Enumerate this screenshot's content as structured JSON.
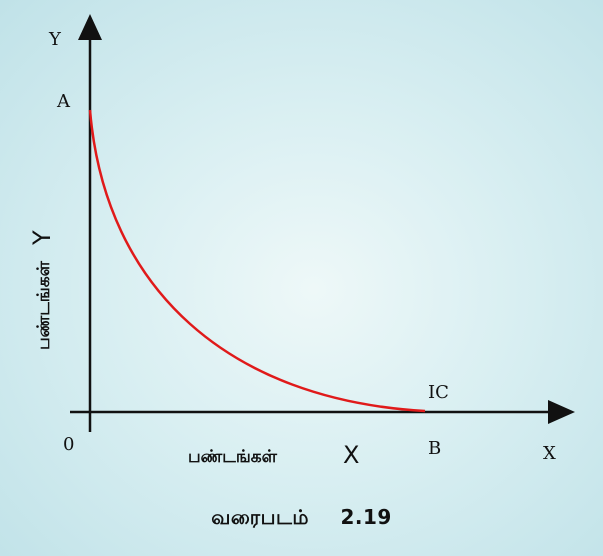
{
  "axes": {
    "y_axis_letter": "Y",
    "x_axis_letter": "X",
    "origin": "0"
  },
  "points": {
    "a": "A",
    "b": "B"
  },
  "curve": {
    "label": "IC",
    "color": "#e01a1a"
  },
  "axis_titles": {
    "y_goods": "பண்டங்கள்",
    "y_letter": "Y",
    "x_goods": "பண்டங்கள்",
    "x_letter": "X"
  },
  "caption": {
    "word": "வரைபடம்",
    "number": "2.19"
  }
}
